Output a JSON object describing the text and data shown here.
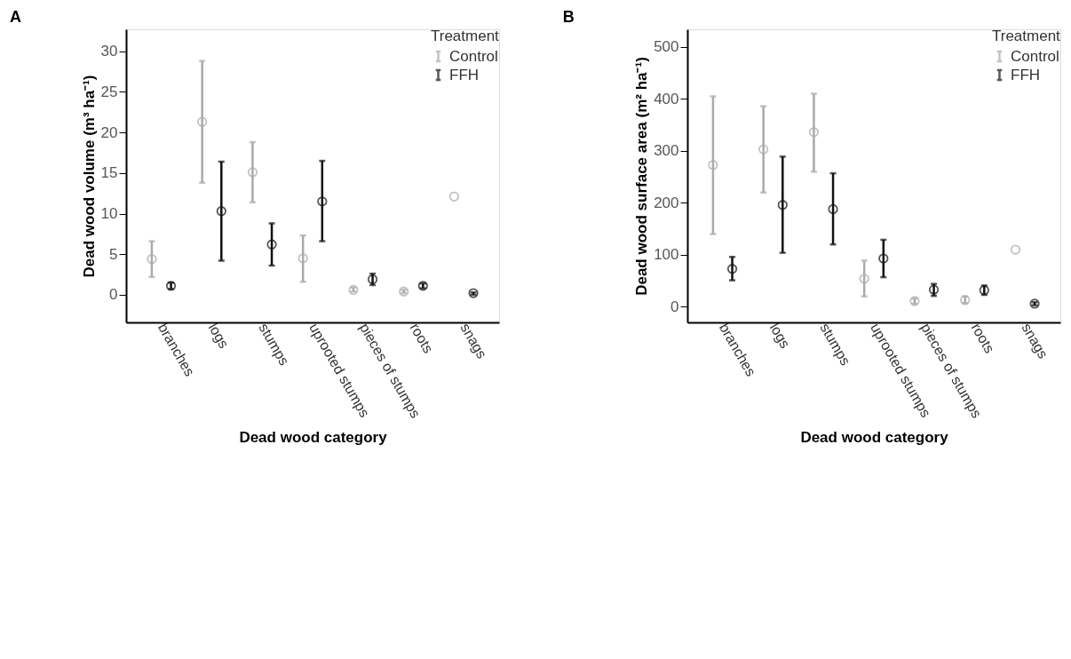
{
  "chart_data": [
    {
      "type": "scatter",
      "title": "A",
      "xlabel": "Dead wood category",
      "ylabel": "Dead wood volume  (m³ ha⁻¹)",
      "legend_title": "Treatment",
      "legend": "top right",
      "marker": "circle",
      "grid": false,
      "categories": [
        "branches",
        "logs",
        "stumps",
        "uprooted stumps",
        "pieces of stumps",
        "roots",
        "snags"
      ],
      "ylim": [
        -3.4,
        32.7
      ],
      "yticks": [
        0,
        5,
        10,
        15,
        20,
        25,
        30
      ],
      "series": [
        {
          "name": "Control",
          "color": "#aaaaaa",
          "values": [
            4.4,
            21.3,
            15.1,
            4.5,
            0.6,
            0.4,
            12.1
          ],
          "errors": [
            [
              2.2,
              6.6
            ],
            [
              13.8,
              28.8
            ],
            [
              11.4,
              18.8
            ],
            [
              1.6,
              7.3
            ],
            [
              0.4,
              0.9
            ],
            [
              0.2,
              0.6
            ],
            null
          ]
        },
        {
          "name": "FFH",
          "color": "#111111",
          "values": [
            1.1,
            10.3,
            6.2,
            11.5,
            1.9,
            1.1,
            0.2
          ],
          "errors": [
            [
              0.7,
              1.5
            ],
            [
              4.2,
              16.4
            ],
            [
              3.6,
              8.8
            ],
            [
              6.6,
              16.5
            ],
            [
              1.2,
              2.6
            ],
            [
              0.8,
              1.4
            ],
            [
              0.0,
              0.3
            ]
          ]
        }
      ]
    },
    {
      "type": "scatter",
      "title": "B",
      "xlabel": "Dead wood category",
      "ylabel": "Dead wood surface area  (m² ha⁻¹)",
      "legend_title": "Treatment",
      "legend": "top right",
      "marker": "circle",
      "grid": false,
      "categories": [
        "branches",
        "logs",
        "stumps",
        "uprooted stumps",
        "pieces of stumps",
        "roots",
        "snags"
      ],
      "ylim": [
        -30,
        534
      ],
      "yticks": [
        0,
        100,
        200,
        300,
        400,
        500
      ],
      "series": [
        {
          "name": "Control",
          "color": "#aaaaaa",
          "values": [
            273,
            303,
            336,
            54,
            11,
            13,
            110
          ],
          "errors": [
            [
              140,
              405
            ],
            [
              220,
              386
            ],
            [
              260,
              410
            ],
            [
              20,
              89
            ],
            [
              6,
              16
            ],
            [
              7,
              20
            ],
            null
          ]
        },
        {
          "name": "FFH",
          "color": "#111111",
          "values": [
            73,
            196,
            188,
            93,
            33,
            32,
            6
          ],
          "errors": [
            [
              51,
              96
            ],
            [
              104,
              289
            ],
            [
              120,
              257
            ],
            [
              57,
              129
            ],
            [
              21,
              44
            ],
            [
              23,
              41
            ],
            [
              3,
              9
            ]
          ]
        }
      ]
    }
  ]
}
